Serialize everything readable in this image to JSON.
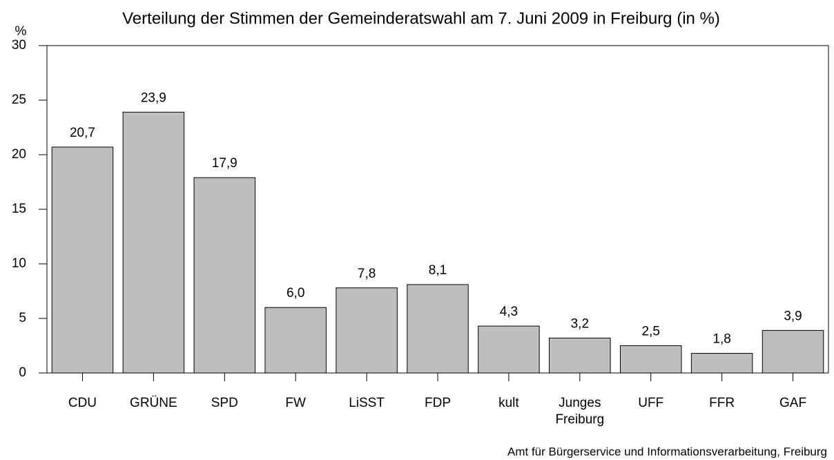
{
  "chart_data": {
    "type": "bar",
    "title": "Verteilung der Stimmen der Gemeinderatswahl am 7. Juni 2009 in Freiburg (in %)",
    "y_label": "%",
    "source": "Amt für Bürgerservice und Informationsverarbeitung, Freiburg",
    "categories": [
      "CDU",
      "GRÜNE",
      "SPD",
      "FW",
      "LiSST",
      "FDP",
      "kult",
      "Junges Freiburg",
      "UFF",
      "FFR",
      "GAF"
    ],
    "values": [
      20.7,
      23.9,
      17.9,
      6.0,
      7.8,
      8.1,
      4.3,
      3.2,
      2.5,
      1.8,
      3.9
    ],
    "value_labels": [
      "20,7",
      "23,9",
      "17,9",
      "6,0",
      "7,8",
      "8,1",
      "4,3",
      "3,2",
      "2,5",
      "1,8",
      "3,9"
    ],
    "color": "#bebebe",
    "ylim": [
      0,
      30
    ],
    "yticks": [
      0,
      5,
      10,
      15,
      20,
      25,
      30
    ],
    "grid": false
  }
}
